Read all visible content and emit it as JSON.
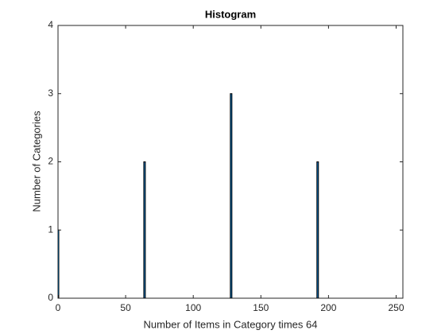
{
  "chart_data": {
    "type": "bar",
    "title": "Histogram",
    "x_label": "Number of Items in Category times 64",
    "y_label": "Number of Categories",
    "x": [
      0,
      64,
      128,
      192
    ],
    "values": [
      1,
      2,
      3,
      2
    ],
    "color": "#0072bd",
    "edge_color": "#000000",
    "xlim": [
      0,
      255
    ],
    "xticks": [
      0,
      50,
      100,
      150,
      200,
      250
    ],
    "ylim": [
      0,
      4
    ],
    "yticks": [
      0,
      1,
      2,
      3,
      4
    ]
  }
}
